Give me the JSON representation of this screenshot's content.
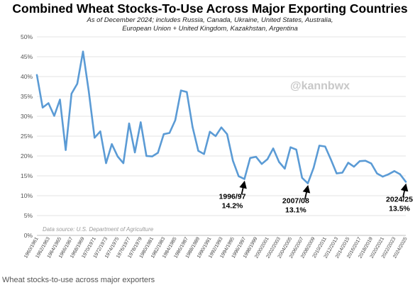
{
  "chart_data": {
    "type": "line",
    "title": "Combined Wheat Stocks-To-Use Across Major Exporting Countries",
    "subtitle_lines": [
      "As of December 2024; includes Russia, Canada, Ukraine, United States, Australia,",
      "European Union + United Kingdom, Kazakhstan, Argentina"
    ],
    "xlabel": "",
    "ylabel": "",
    "ylim": [
      0,
      50
    ],
    "y_ticks": [
      "0%",
      "5%",
      "10%",
      "15%",
      "20%",
      "25%",
      "30%",
      "35%",
      "40%",
      "45%",
      "50%"
    ],
    "grid": "horizontal",
    "x_tick_labels": [
      "1960/1961",
      "1962/1963",
      "1964/1965",
      "1966/1967",
      "1968/1969",
      "1970/1971",
      "1972/1973",
      "1974/1975",
      "1976/1977",
      "1978/1979",
      "1980/1981",
      "1982/1983",
      "1984/1985",
      "1986/1987",
      "1988/1989",
      "1990/1991",
      "1992/1993",
      "1994/1995",
      "1996/1997",
      "1998/1999",
      "2000/2001",
      "2002/2003",
      "2004/2005",
      "2006/2007",
      "2008/2009",
      "2010/2011",
      "2012/2013",
      "2014/2015",
      "2016/2017",
      "2018/2019",
      "2020/2021",
      "2022/2023",
      "2024/2025"
    ],
    "x": [
      "1960/1961",
      "1961/1962",
      "1962/1963",
      "1963/1964",
      "1964/1965",
      "1965/1966",
      "1966/1967",
      "1967/1968",
      "1968/1969",
      "1969/1970",
      "1970/1971",
      "1971/1972",
      "1972/1973",
      "1973/1974",
      "1974/1975",
      "1975/1976",
      "1976/1977",
      "1977/1978",
      "1978/1979",
      "1979/1980",
      "1980/1981",
      "1981/1982",
      "1982/1983",
      "1983/1984",
      "1984/1985",
      "1985/1986",
      "1986/1987",
      "1987/1988",
      "1988/1989",
      "1989/1990",
      "1990/1991",
      "1991/1992",
      "1992/1993",
      "1993/1994",
      "1994/1995",
      "1995/1996",
      "1996/1997",
      "1997/1998",
      "1998/1999",
      "1999/2000",
      "2000/2001",
      "2001/2002",
      "2002/2003",
      "2003/2004",
      "2004/2005",
      "2005/2006",
      "2006/2007",
      "2007/2008",
      "2008/2009",
      "2009/2010",
      "2010/2011",
      "2011/2012",
      "2012/2013",
      "2013/2014",
      "2014/2015",
      "2015/2016",
      "2016/2017",
      "2017/2018",
      "2018/2019",
      "2019/2020",
      "2020/2021",
      "2021/2022",
      "2022/2023",
      "2023/2024",
      "2024/2025"
    ],
    "series": [
      {
        "color": "#5b9bd5",
        "values": [
          40.4,
          32.2,
          33.3,
          30.1,
          34.2,
          21.5,
          35.7,
          38.2,
          46.3,
          36.3,
          24.6,
          26.2,
          18.2,
          23.0,
          19.9,
          18.2,
          28.2,
          20.9,
          28.5,
          20.0,
          19.9,
          20.8,
          25.5,
          25.8,
          29.0,
          36.5,
          36.1,
          27.3,
          21.3,
          20.5,
          26.1,
          25.0,
          27.2,
          25.5,
          18.8,
          14.9,
          14.2,
          19.5,
          19.8,
          18.0,
          19.2,
          21.9,
          18.5,
          16.8,
          22.2,
          21.6,
          14.5,
          13.1,
          17.0,
          22.6,
          22.4,
          19.1,
          15.6,
          15.8,
          18.3,
          17.3,
          18.7,
          18.8,
          18.1,
          15.6,
          14.8,
          15.4,
          16.2,
          15.4,
          13.5
        ]
      }
    ],
    "annotations": [
      {
        "label_line1": "1996/97",
        "label_line2": "14.2%",
        "x": "1996/1997",
        "y": 14.2
      },
      {
        "label_line1": "2007/08",
        "label_line2": "13.1%",
        "x": "2007/2008",
        "y": 13.1
      },
      {
        "label_line1": "2024/25",
        "label_line2": "13.5%",
        "x": "2024/2025",
        "y": 13.5
      }
    ],
    "source_note": "Data source: U.S. Department of Agriculture",
    "watermark": "@kannbwx"
  },
  "caption": "Wheat stocks-to-use across major exporters"
}
